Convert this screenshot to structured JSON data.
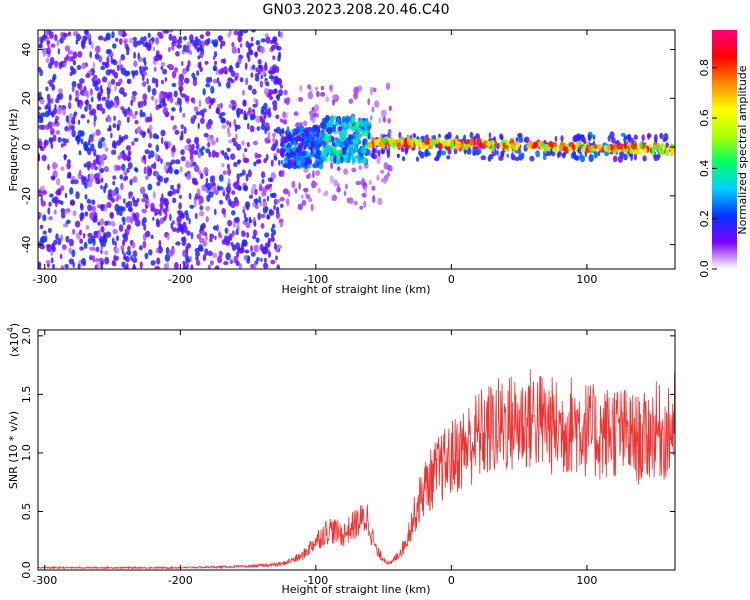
{
  "title": "GN03.2023.208.20.46.C40",
  "chart_data": [
    {
      "type": "heatmap",
      "xlabel": "Height of straight line (km)",
      "ylabel": "Frequency (Hz)",
      "xlim": [
        -305,
        165
      ],
      "ylim": [
        -50,
        48
      ],
      "xticks": [
        -300,
        -200,
        -100,
        0,
        100
      ],
      "yticks": [
        -40,
        -20,
        0,
        20,
        40
      ],
      "colorbar": {
        "label": "Normalized spectral amplitude",
        "range": [
          0.0,
          0.95
        ],
        "ticks": [
          0.0,
          0.2,
          0.4,
          0.6,
          0.8
        ],
        "ticklabels": [
          "0.0",
          "0.2",
          "0.4",
          "0.6",
          "0.8"
        ],
        "colors": [
          "#ffffff",
          "#7f00ff",
          "#0033ff",
          "#00cfff",
          "#00ff66",
          "#aaff00",
          "#ffff00",
          "#ff8800",
          "#ff0000",
          "#ff007f"
        ]
      },
      "regions": [
        {
          "x": [
            -305,
            -125
          ],
          "freq": [
            -50,
            48
          ],
          "amplitude": 0.08,
          "description": "noise"
        },
        {
          "x": [
            -125,
            -95
          ],
          "freq": [
            -8,
            8
          ],
          "amplitude": 0.25
        },
        {
          "x": [
            -95,
            -60
          ],
          "freq": [
            -6,
            12
          ],
          "amplitude": 0.35
        },
        {
          "x": [
            -60,
            165
          ],
          "freq": [
            -2,
            3
          ],
          "amplitude": 0.9
        }
      ]
    },
    {
      "type": "line",
      "xlabel": "Height of straight line (km)",
      "ylabel": "SNR (10 * v/v)",
      "scale_label": "(x10",
      "scale_exponent": "4",
      "xlim": [
        -305,
        165
      ],
      "ylim": [
        0,
        2.05
      ],
      "xticks": [
        -300,
        -200,
        -100,
        0,
        100
      ],
      "yticks": [
        0.0,
        0.5,
        1.0,
        1.5,
        2.0
      ],
      "yticklabels": [
        "0.0",
        "0.5",
        "1.0",
        "1.5",
        "2.0"
      ],
      "color": "#ee3333",
      "series": [
        {
          "x": [
            -305,
            -250,
            -200,
            -150,
            -125,
            -110,
            -100,
            -90,
            -80,
            -70,
            -62,
            -55,
            -45,
            -35,
            -25,
            -20,
            -10,
            0,
            10,
            20,
            30,
            40,
            50,
            60,
            70,
            80,
            90,
            100,
            110,
            120,
            130,
            140,
            150,
            160,
            165
          ],
          "values": [
            0.02,
            0.02,
            0.02,
            0.03,
            0.05,
            0.12,
            0.25,
            0.35,
            0.3,
            0.4,
            0.45,
            0.15,
            0.05,
            0.2,
            0.55,
            0.7,
            0.85,
            0.95,
            1.05,
            1.15,
            1.2,
            1.25,
            1.25,
            1.3,
            1.25,
            1.2,
            1.25,
            1.2,
            1.15,
            1.2,
            1.15,
            1.1,
            1.2,
            1.15,
            1.3
          ],
          "noise_amplitude": 0.35
        }
      ]
    }
  ]
}
